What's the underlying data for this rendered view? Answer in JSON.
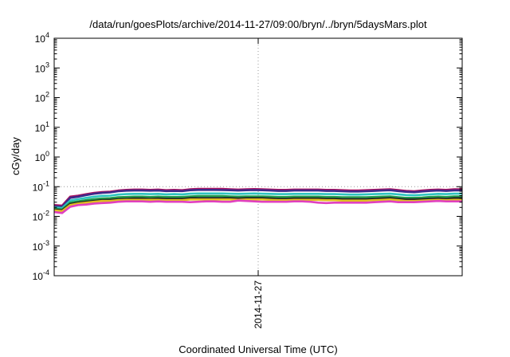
{
  "chart_data": {
    "type": "line",
    "title": "/data/run/goesPlots/archive/2014-11-27/09:00/bryn/../bryn/5daysMars.plot",
    "xlabel": "Coordinated Universal Time (UTC)",
    "ylabel": "cGy/day",
    "yscale": "log",
    "ylim_exponents": [
      -4,
      4
    ],
    "ytick_base": "10",
    "ytick_exponents": [
      "-4",
      "-3",
      "-2",
      "-1",
      "0",
      "1",
      "2",
      "3",
      "4"
    ],
    "xtick_labels": [
      "2014-11-27"
    ],
    "grid": "dotted at labeled ticks",
    "legend": "none",
    "x": [
      0,
      1,
      2,
      3,
      4,
      5,
      6,
      7,
      8,
      9,
      10,
      11,
      12,
      13,
      14,
      15,
      16,
      17,
      18,
      19,
      20,
      21,
      22,
      23,
      24,
      25,
      26,
      27,
      28,
      29,
      30,
      31,
      32,
      33,
      34,
      35,
      36,
      37,
      38,
      39,
      40,
      41,
      42,
      43,
      44,
      45,
      46,
      47,
      48,
      49,
      50,
      51
    ],
    "series": [
      {
        "color": "#aa1060",
        "values": [
          0.024,
          0.023,
          0.046,
          0.05,
          0.056,
          0.062,
          0.066,
          0.068,
          0.074,
          0.078,
          0.08,
          0.08,
          0.078,
          0.08,
          0.076,
          0.078,
          0.076,
          0.082,
          0.084,
          0.084,
          0.084,
          0.084,
          0.082,
          0.08,
          0.082,
          0.083,
          0.082,
          0.08,
          0.078,
          0.078,
          0.08,
          0.08,
          0.08,
          0.08,
          0.078,
          0.078,
          0.076,
          0.074,
          0.074,
          0.076,
          0.078,
          0.08,
          0.082,
          0.077,
          0.072,
          0.07,
          0.074,
          0.078,
          0.08,
          0.078,
          0.082,
          0.082
        ]
      },
      {
        "color": "#3d2a8a",
        "values": [
          0.022,
          0.021,
          0.042,
          0.046,
          0.052,
          0.058,
          0.062,
          0.064,
          0.07,
          0.073,
          0.074,
          0.074,
          0.073,
          0.074,
          0.071,
          0.072,
          0.071,
          0.076,
          0.078,
          0.078,
          0.078,
          0.077,
          0.076,
          0.074,
          0.076,
          0.077,
          0.076,
          0.074,
          0.072,
          0.072,
          0.074,
          0.074,
          0.074,
          0.074,
          0.072,
          0.072,
          0.07,
          0.069,
          0.069,
          0.07,
          0.072,
          0.074,
          0.076,
          0.071,
          0.067,
          0.065,
          0.069,
          0.072,
          0.074,
          0.072,
          0.075,
          0.075
        ]
      },
      {
        "color": "#2ec4c0",
        "values": [
          0.02,
          0.019,
          0.034,
          0.038,
          0.042,
          0.046,
          0.049,
          0.05,
          0.054,
          0.056,
          0.057,
          0.057,
          0.056,
          0.057,
          0.055,
          0.056,
          0.055,
          0.058,
          0.059,
          0.059,
          0.059,
          0.059,
          0.058,
          0.057,
          0.058,
          0.059,
          0.058,
          0.057,
          0.056,
          0.056,
          0.057,
          0.057,
          0.057,
          0.057,
          0.056,
          0.056,
          0.055,
          0.054,
          0.054,
          0.055,
          0.056,
          0.057,
          0.058,
          0.055,
          0.052,
          0.051,
          0.053,
          0.055,
          0.057,
          0.056,
          0.058,
          0.058
        ]
      },
      {
        "color": "#1f9a4a",
        "values": [
          0.018,
          0.017,
          0.029,
          0.032,
          0.035,
          0.038,
          0.04,
          0.041,
          0.044,
          0.045,
          0.046,
          0.046,
          0.045,
          0.046,
          0.045,
          0.045,
          0.045,
          0.047,
          0.048,
          0.048,
          0.048,
          0.048,
          0.047,
          0.046,
          0.047,
          0.047,
          0.047,
          0.046,
          0.045,
          0.045,
          0.046,
          0.046,
          0.046,
          0.046,
          0.045,
          0.045,
          0.044,
          0.044,
          0.044,
          0.044,
          0.045,
          0.046,
          0.047,
          0.044,
          0.042,
          0.042,
          0.043,
          0.045,
          0.046,
          0.045,
          0.047,
          0.047
        ]
      },
      {
        "color": "#222222",
        "values": [
          0.017,
          0.016,
          0.026,
          0.029,
          0.031,
          0.033,
          0.035,
          0.036,
          0.038,
          0.039,
          0.04,
          0.04,
          0.039,
          0.04,
          0.039,
          0.039,
          0.039,
          0.041,
          0.041,
          0.041,
          0.041,
          0.041,
          0.041,
          0.04,
          0.041,
          0.041,
          0.041,
          0.04,
          0.039,
          0.039,
          0.04,
          0.04,
          0.04,
          0.04,
          0.039,
          0.039,
          0.038,
          0.038,
          0.038,
          0.038,
          0.039,
          0.04,
          0.041,
          0.039,
          0.037,
          0.037,
          0.038,
          0.039,
          0.04,
          0.039,
          0.041,
          0.041
        ]
      },
      {
        "color": "#e0c020",
        "values": [
          0.016,
          0.015,
          0.024,
          0.027,
          0.029,
          0.031,
          0.033,
          0.033,
          0.035,
          0.036,
          0.036,
          0.036,
          0.036,
          0.036,
          0.035,
          0.035,
          0.035,
          0.037,
          0.037,
          0.037,
          0.037,
          0.037,
          0.037,
          0.036,
          0.037,
          0.037,
          0.037,
          0.036,
          0.035,
          0.035,
          0.036,
          0.036,
          0.036,
          0.036,
          0.035,
          0.035,
          0.034,
          0.034,
          0.034,
          0.034,
          0.035,
          0.036,
          0.037,
          0.035,
          0.033,
          0.033,
          0.034,
          0.035,
          0.036,
          0.035,
          0.036,
          0.036
        ]
      },
      {
        "color": "#e040c0",
        "values": [
          0.014,
          0.013,
          0.021,
          0.024,
          0.025,
          0.027,
          0.028,
          0.029,
          0.031,
          0.032,
          0.032,
          0.032,
          0.031,
          0.032,
          0.031,
          0.031,
          0.031,
          0.03,
          0.031,
          0.032,
          0.032,
          0.031,
          0.031,
          0.034,
          0.033,
          0.032,
          0.031,
          0.031,
          0.031,
          0.031,
          0.032,
          0.032,
          0.031,
          0.029,
          0.028,
          0.029,
          0.029,
          0.029,
          0.029,
          0.029,
          0.03,
          0.031,
          0.032,
          0.03,
          0.03,
          0.03,
          0.031,
          0.032,
          0.033,
          0.032,
          0.032,
          0.032
        ]
      }
    ]
  }
}
